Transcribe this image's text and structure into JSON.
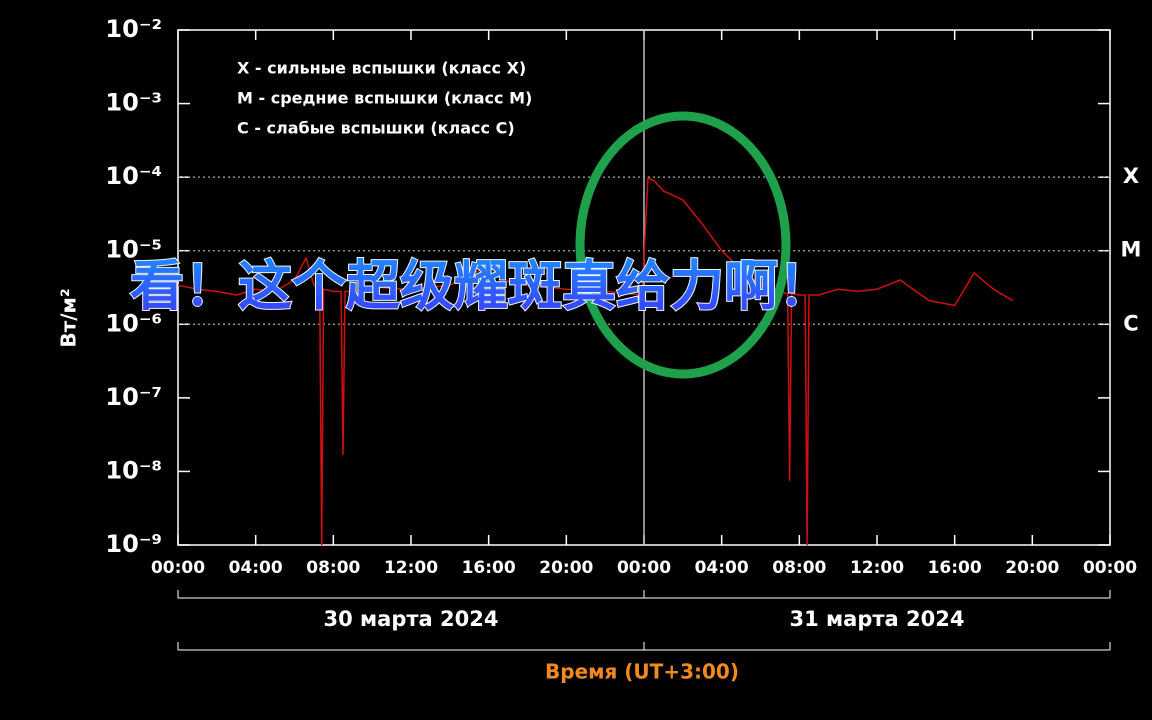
{
  "chart_data": {
    "type": "line",
    "y_label": "Вт/м²",
    "x_label": "Время (UT+3:00)",
    "log_y": true,
    "ylim": [
      1e-09,
      0.01
    ],
    "yticks": [
      {
        "value": 0.01,
        "label": "10⁻²"
      },
      {
        "value": 0.001,
        "label": "10⁻³"
      },
      {
        "value": 0.0001,
        "label": "10⁻⁴"
      },
      {
        "value": 1e-05,
        "label": "10⁻⁵"
      },
      {
        "value": 1e-06,
        "label": "10⁻⁶"
      },
      {
        "value": 1e-07,
        "label": "10⁻⁷"
      },
      {
        "value": 1e-08,
        "label": "10⁻⁸"
      },
      {
        "value": 1e-09,
        "label": "10⁻⁹"
      }
    ],
    "xlim": [
      0,
      48
    ],
    "xticks": [
      {
        "value": 0,
        "label": "00:00"
      },
      {
        "value": 4,
        "label": "04:00"
      },
      {
        "value": 8,
        "label": "08:00"
      },
      {
        "value": 12,
        "label": "12:00"
      },
      {
        "value": 16,
        "label": "16:00"
      },
      {
        "value": 20,
        "label": "20:00"
      },
      {
        "value": 24,
        "label": "00:00"
      },
      {
        "value": 28,
        "label": "04:00"
      },
      {
        "value": 32,
        "label": "08:00"
      },
      {
        "value": 36,
        "label": "12:00"
      },
      {
        "value": 40,
        "label": "16:00"
      },
      {
        "value": 44,
        "label": "20:00"
      },
      {
        "value": 48,
        "label": "00:00"
      }
    ],
    "days": [
      {
        "label": "30 марта 2024",
        "start": 0,
        "end": 24
      },
      {
        "label": "31 марта 2024",
        "start": 24,
        "end": 48
      }
    ],
    "class_levels": [
      {
        "label": "X",
        "value": 0.0001
      },
      {
        "label": "M",
        "value": 1e-05
      },
      {
        "label": "C",
        "value": 1e-06
      }
    ],
    "legend_notes": [
      "X - сильные вспышки (класс X)",
      "M - средние вспышки (класс M)",
      "C - слабые вспышки (класс C)"
    ],
    "overlay_caption": "看！这个超级耀斑真给力啊！",
    "series": [
      {
        "color": "#d01010",
        "x": [
          0,
          1,
          2,
          3,
          4,
          5,
          6,
          6.6,
          7,
          7.3,
          7.4,
          7.5,
          8,
          8.4,
          8.5,
          8.6,
          9,
          10,
          12,
          14,
          15,
          16,
          17,
          18,
          20,
          22,
          23.9,
          24.2,
          24.5,
          25,
          26,
          27,
          28,
          29,
          30,
          31,
          31.4,
          31.5,
          31.6,
          32,
          32.3,
          32.4,
          32.5,
          33,
          34,
          35,
          36,
          37.2,
          38,
          38.7,
          40,
          41,
          42,
          43
        ],
        "values": [
          3.4e-06,
          3e-06,
          2.8e-06,
          2.5e-06,
          3e-06,
          2.8e-06,
          4e-06,
          8e-06,
          3.4e-06,
          3e-06,
          1e-09,
          3e-06,
          2.8e-06,
          2.8e-06,
          1.7e-08,
          2.8e-06,
          2.8e-06,
          3.2e-06,
          3e-06,
          3.4e-06,
          4.7e-06,
          6e-06,
          3.8e-06,
          3.4e-06,
          3e-06,
          2.8e-06,
          2.5e-06,
          9.7e-05,
          9e-05,
          6.5e-05,
          4.9e-05,
          2.3e-05,
          1e-05,
          5.5e-06,
          3.4e-06,
          2.8e-06,
          2.6e-06,
          7.6e-09,
          2.6e-06,
          2.5e-06,
          2.5e-06,
          1e-09,
          2.5e-06,
          2.5e-06,
          3e-06,
          2.8e-06,
          3e-06,
          4e-06,
          2.8e-06,
          2.1e-06,
          1.8e-06,
          5e-06,
          3e-06,
          2.1e-06
        ]
      }
    ]
  }
}
